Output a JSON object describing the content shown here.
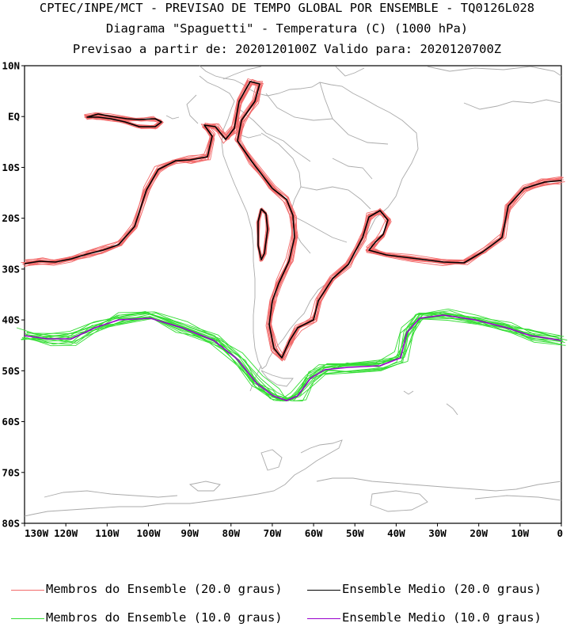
{
  "header": {
    "line1": "CPTEC/INPE/MCT - PREVISAO DE TEMPO GLOBAL POR ENSEMBLE - TQ0126L028",
    "line2": "Diagrama \"Spaguetti\" - Temperatura (C) (1000 hPa)",
    "line3": "Previsao a partir de: 2020120100Z  Valido para: 2020120700Z"
  },
  "map": {
    "region": "South America and surrounding oceans",
    "lat_ticks": [
      "10N",
      "EQ",
      "10S",
      "20S",
      "30S",
      "40S",
      "50S",
      "60S",
      "70S",
      "80S"
    ],
    "lon_ticks": [
      "130W",
      "120W",
      "110W",
      "100W",
      "90W",
      "80W",
      "70W",
      "60W",
      "50W",
      "40W",
      "30W",
      "20W",
      "10W",
      "0"
    ],
    "lat_range": [
      -80,
      10
    ],
    "lon_range": [
      -130,
      0
    ],
    "colors": {
      "member_20": "#f26a6a",
      "mean_20": "#000000",
      "member_10": "#33dd33",
      "mean_10": "#9900cc",
      "coast": "#aaaaaa"
    }
  },
  "legend": {
    "members_20": "Membros do Ensemble (20.0 graus)",
    "mean_20": "Ensemble Medio (20.0 graus)",
    "members_10": "Membros do Ensemble (10.0 graus)",
    "mean_10": "Ensemble Medio (10.0 graus)"
  }
}
